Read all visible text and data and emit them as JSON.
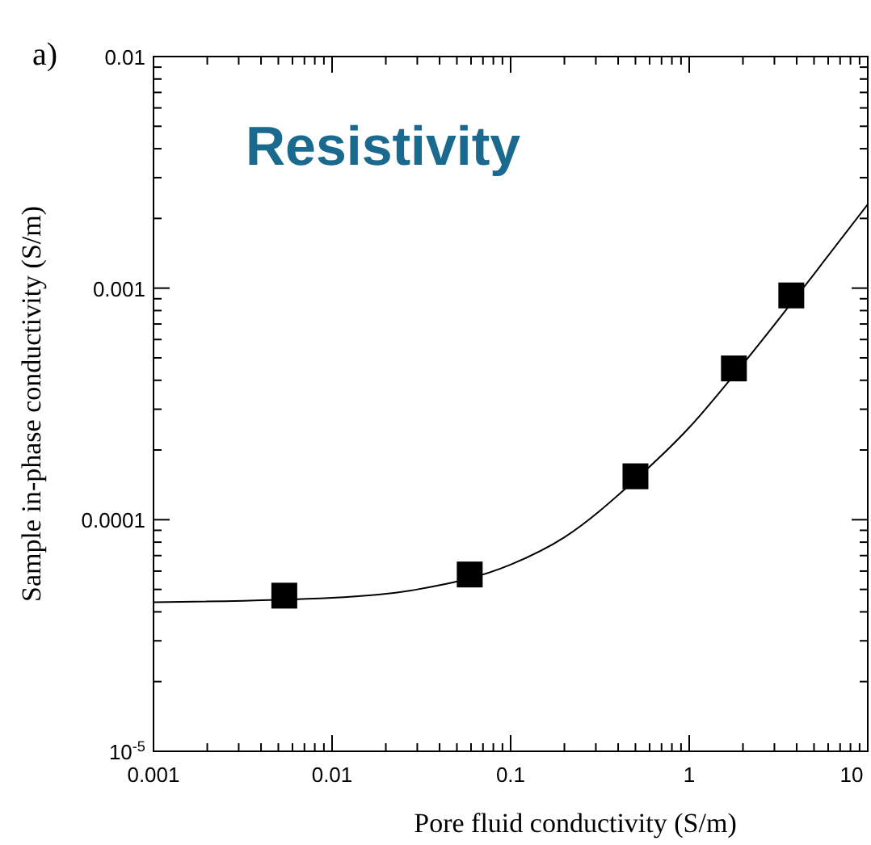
{
  "chart_data": {
    "type": "scatter",
    "title": "Resistivity",
    "xlabel": "Pore fluid conductivity (S/m)",
    "ylabel": "Sample in-phase conductivity (S/m)",
    "annotations": [
      "a)"
    ],
    "log": "xy",
    "grid": false,
    "xlim": [
      0.001,
      10
    ],
    "xticks": [
      0.001,
      0.01,
      0.1,
      1,
      10
    ],
    "ylim": [
      1e-05,
      0.01
    ],
    "yticks": [
      {
        "value": 1e-05,
        "label": "10$^{-5}$"
      },
      0.0001,
      0.001,
      0.01
    ],
    "series": [
      {
        "marker": "square",
        "color": "#000000",
        "x": [
          0.0054,
          0.059,
          0.5,
          1.78,
          3.73
        ],
        "values": [
          4.7e-05,
          5.8e-05,
          0.000154,
          0.00045,
          0.00093
        ]
      },
      {
        "type": "line",
        "color": "#000000",
        "line_style": "solid",
        "x": [
          0.001,
          0.01,
          0.03,
          0.1,
          0.2,
          0.5,
          1,
          2,
          5,
          10
        ],
        "values": [
          4.4e-05,
          4.6e-05,
          5e-05,
          6.4e-05,
          8.4e-05,
          0.000149,
          0.00025,
          0.00047,
          0.00115,
          0.0023
        ]
      }
    ]
  }
}
